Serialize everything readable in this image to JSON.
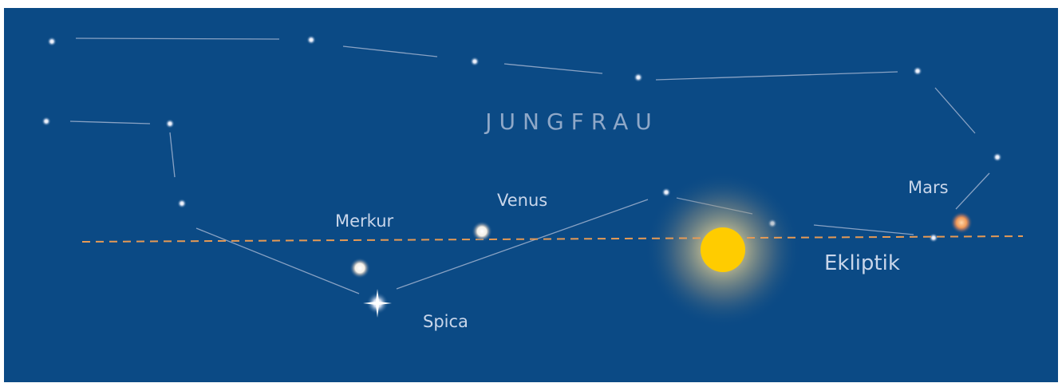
{
  "constellation": "JUNGFRAU",
  "labels": {
    "mercury": "Merkur",
    "venus": "Venus",
    "mars": "Mars",
    "spica": "Spica",
    "ecliptic": "Ekliptik"
  }
}
